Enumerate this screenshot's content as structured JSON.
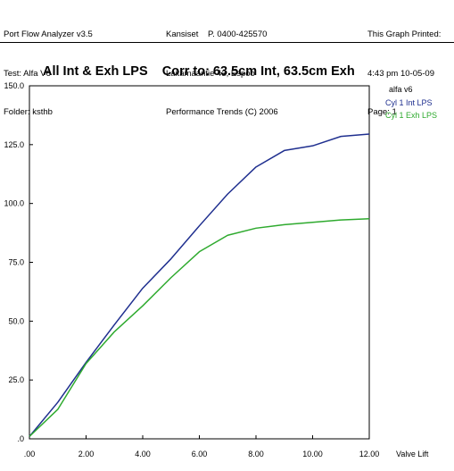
{
  "header": {
    "left": [
      "Port Flow Analyzer v3.5",
      "Test: Alfa V6",
      "Folder: ksthb"
    ],
    "middle": [
      "Kansiset    P. 0400-425570",
      "Laitamaantie 43, Espoo",
      "Performance Trends (C) 2006"
    ],
    "right": [
      "This Graph Printed:",
      "4:43 pm 10-05-09",
      "Page: 1"
    ]
  },
  "chart_data": {
    "type": "line",
    "title": "All Int & Exh LPS    Corr to: 63.5cm Int, 63.5cm Exh",
    "xlabel": "Valve Lift",
    "ylabel": "",
    "xlim": [
      0,
      12
    ],
    "ylim": [
      0,
      150
    ],
    "x_ticks": [
      ".00",
      "2.00",
      "4.00",
      "6.00",
      "8.00",
      "10.00",
      "12.00"
    ],
    "y_ticks": [
      ".0",
      "25.0",
      "50.0",
      "75.0",
      "100.0",
      "125.0",
      "150.0"
    ],
    "grid": false,
    "legend": {
      "position": "right",
      "title": "alfa v6",
      "entries": [
        "Cyl 1 Int LPS",
        "Cyl 1 Exh LPS"
      ]
    },
    "x": [
      0,
      1,
      2,
      3,
      4,
      5,
      6,
      7,
      8,
      9,
      10,
      11,
      12
    ],
    "series": [
      {
        "name": "Cyl 1 Int LPS",
        "color": "#1f2f8f",
        "values": [
          1,
          15.5,
          32.5,
          48.5,
          64,
          76.5,
          90.5,
          104,
          115.5,
          122.5,
          124.5,
          128.5,
          129.5
        ]
      },
      {
        "name": "Cyl 1 Exh LPS",
        "color": "#2eaa2e",
        "values": [
          1,
          12.5,
          32,
          45.5,
          56.5,
          68.5,
          79.5,
          86.5,
          89.5,
          91,
          92,
          93,
          93.5
        ]
      }
    ]
  }
}
